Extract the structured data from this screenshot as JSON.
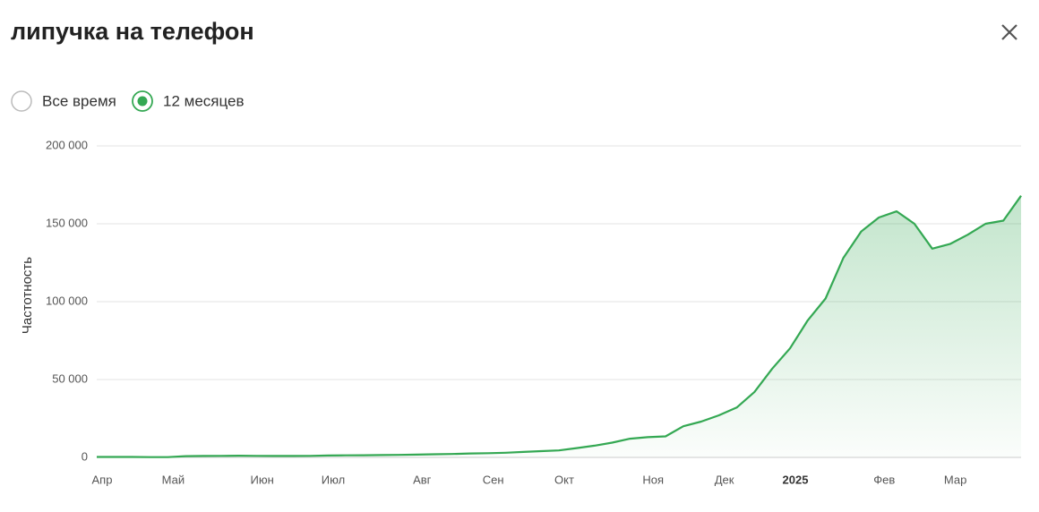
{
  "header": {
    "title": "липучка на телефон"
  },
  "period_options": [
    {
      "label": "Все время",
      "selected": false
    },
    {
      "label": "12 месяцев",
      "selected": true
    }
  ],
  "chart_data": {
    "type": "line",
    "y_label": "Частотность",
    "categories": [
      "Апр",
      null,
      null,
      null,
      "Май",
      null,
      null,
      null,
      null,
      "Июн",
      null,
      null,
      null,
      "Июл",
      null,
      null,
      null,
      null,
      "Авг",
      null,
      null,
      null,
      "Сен",
      null,
      null,
      null,
      "Окт",
      null,
      null,
      null,
      null,
      "Ноя",
      null,
      null,
      null,
      "Дек",
      null,
      null,
      null,
      "2025",
      null,
      null,
      null,
      null,
      "Фев",
      null,
      null,
      null,
      "Мар",
      null,
      null,
      null,
      null
    ],
    "series": [
      {
        "name": "Частотность",
        "color": "#34a853",
        "values": [
          300,
          300,
          300,
          200,
          200,
          800,
          900,
          1000,
          1100,
          1000,
          900,
          900,
          1000,
          1200,
          1300,
          1400,
          1500,
          1600,
          1800,
          2000,
          2200,
          2500,
          2700,
          3000,
          3500,
          4000,
          4500,
          6000,
          7500,
          9500,
          12000,
          13000,
          13500,
          20000,
          23000,
          27000,
          32000,
          42000,
          57000,
          70000,
          88000,
          102000,
          128000,
          145000,
          154000,
          158000,
          150000,
          134000,
          137000,
          143000,
          150000,
          152000,
          168000
        ]
      }
    ],
    "ylim": [
      0,
      200000
    ],
    "yticks": [
      0,
      {
        "value": 50000,
        "label": "50 000"
      },
      {
        "value": 100000,
        "label": "100 000"
      },
      {
        "value": 150000,
        "label": "150 000"
      },
      {
        "value": 200000,
        "label": "200 000"
      }
    ],
    "grid": true
  }
}
